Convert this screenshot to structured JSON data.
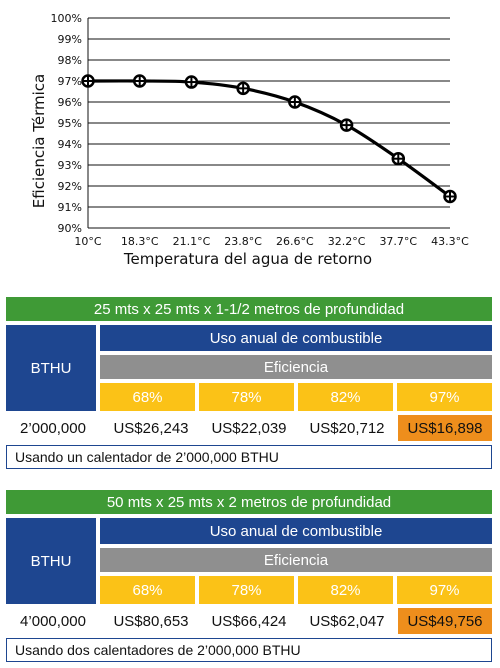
{
  "chart_data": {
    "type": "line",
    "categories": [
      "10°C",
      "18.3°C",
      "21.1°C",
      "23.8°C",
      "26.6°C",
      "32.2°C",
      "37.7°C",
      "43.3°C"
    ],
    "values": [
      97.0,
      97.0,
      96.95,
      96.65,
      96.0,
      94.9,
      93.3,
      91.5
    ],
    "ylabel": "Eficiencia Térmica",
    "xlabel": "Temperatura del agua de retorno",
    "ylim": [
      90,
      100
    ],
    "yticks": [
      "90%",
      "91%",
      "92%",
      "93%",
      "94%",
      "95%",
      "96%",
      "97%",
      "98%",
      "99%",
      "100%"
    ],
    "grid": "horizontal",
    "line_color": "#000000"
  },
  "tables": [
    {
      "title": "25 mts x 25 mts x 1-1/2 metros de profundidad",
      "bthu_label": "BTHU",
      "uso_label": "Uso anual de combustible",
      "eficiencia_label": "Eficiencia",
      "efficiencies": [
        "68%",
        "78%",
        "82%",
        "97%"
      ],
      "capacity": "2’000,000",
      "costs": [
        "US$26,243",
        "US$22,039",
        "US$20,712",
        "US$16,898"
      ],
      "note": "Usando un calentador de 2’000,000 BTHU"
    },
    {
      "title": "50 mts x 25 mts x 2 metros de profundidad",
      "bthu_label": "BTHU",
      "uso_label": "Uso anual de combustible",
      "eficiencia_label": "Eficiencia",
      "efficiencies": [
        "68%",
        "78%",
        "82%",
        "97%"
      ],
      "capacity": "4’000,000",
      "costs": [
        "US$80,653",
        "US$66,424",
        "US$62,047",
        "US$49,756"
      ],
      "note": "Usando dos calentadores de 2’000,000 BTHU"
    }
  ],
  "colors": {
    "banner_green": "#3f9a36",
    "header_blue": "#1e4690",
    "efficiency_gray": "#8f8f8f",
    "pct_yellow": "#fbc217",
    "highlight_orange": "#ee8e1c"
  }
}
